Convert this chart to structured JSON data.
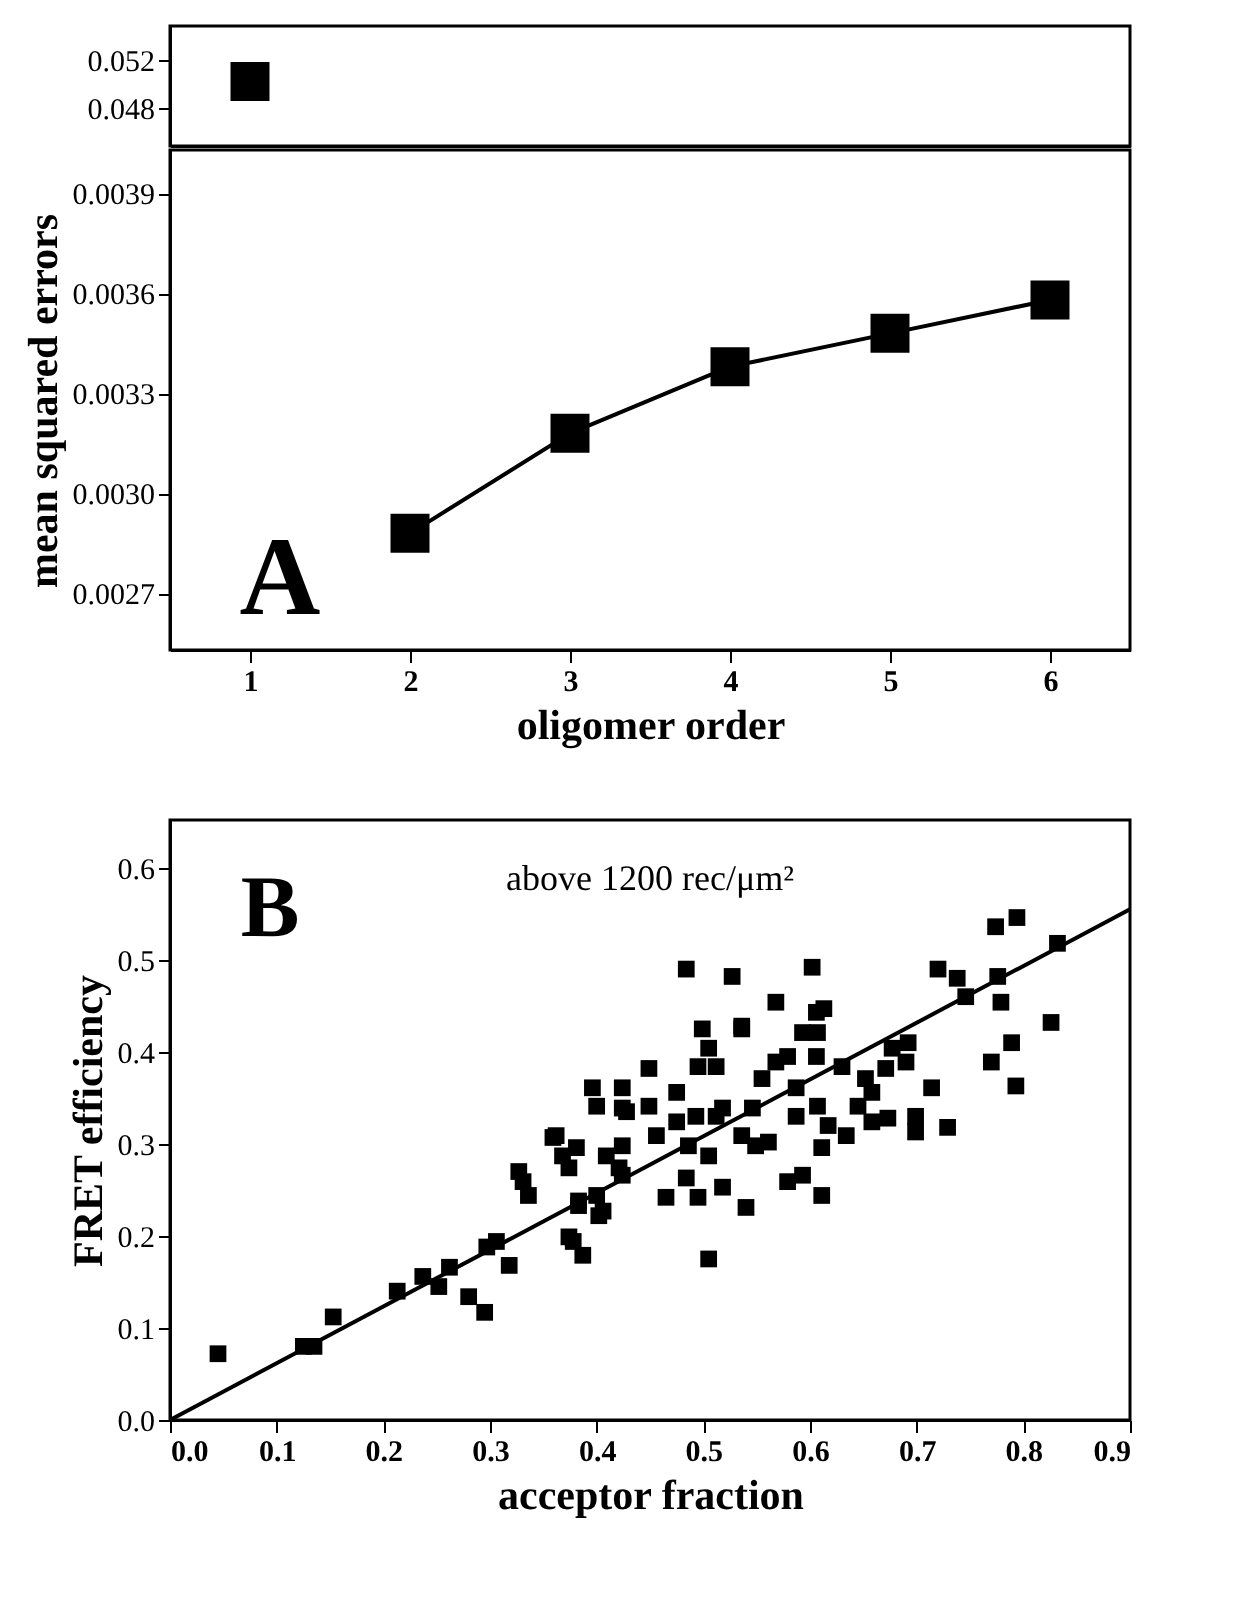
{
  "chart_data": [
    {
      "type": "line",
      "marker": "square",
      "xlim": [
        0.5,
        6.5
      ],
      "ylim": [
        0.04475,
        0.0549
      ],
      "yticks": [
        0.048,
        0.052
      ],
      "tick_labels": "y",
      "grid": false,
      "series": [
        {
          "color": "#000000",
          "x": [
            1
          ],
          "values": [
            0.0502
          ]
        }
      ]
    },
    {
      "type": "line",
      "marker": "square",
      "xlabel": "oligomer order",
      "ylabel": "mean squared errors",
      "xlim": [
        0.5,
        6.5
      ],
      "ylim": [
        0.00253,
        0.00403
      ],
      "xticks": [
        1,
        2,
        3,
        4,
        5,
        6
      ],
      "yticks": [
        0.0027,
        {
          "value": 0.003,
          "label": "0.0030"
        },
        0.0033,
        0.0036,
        0.0039
      ],
      "grid": false,
      "annotations": [
        "A"
      ],
      "series": [
        {
          "color": "#000000",
          "x": [
            2,
            3,
            4,
            5,
            6
          ],
          "values": [
            0.00288,
            0.00318,
            0.00338,
            0.00348,
            0.00358
          ]
        }
      ]
    },
    {
      "type": "scatter",
      "marker": "square",
      "xlabel": "acceptor fraction",
      "ylabel": "FRET efficiency",
      "xlim": [
        0,
        0.9
      ],
      "ylim": [
        0,
        0.652
      ],
      "xticks": [
        {
          "value": 0,
          "label": "0.0"
        },
        0.1,
        0.2,
        0.3,
        0.4,
        0.5,
        0.6,
        0.7,
        0.8,
        0.9
      ],
      "yticks": [
        {
          "value": 0,
          "label": "0.0"
        },
        0.1,
        0.2,
        0.3,
        0.4,
        0.5,
        0.6
      ],
      "grid": false,
      "annotations": [
        "B",
        "above 1200 rec/μm²"
      ],
      "series": [
        {
          "type": "scatter",
          "color": "#000000",
          "x": [
            0.045,
            0.125,
            0.135,
            0.153,
            0.213,
            0.237,
            0.252,
            0.262,
            0.28,
            0.295,
            0.297,
            0.306,
            0.318,
            0.327,
            0.336,
            0.362,
            0.374,
            0.378,
            0.387,
            0.383,
            0.4,
            0.406,
            0.396,
            0.4,
            0.424,
            0.424,
            0.409,
            0.424,
            0.421,
            0.381,
            0.331,
            0.359,
            0.368,
            0.383,
            0.402,
            0.374,
            0.428,
            0.424,
            0.449,
            0.449,
            0.465,
            0.456,
            0.475,
            0.475,
            0.495,
            0.499,
            0.495,
            0.505,
            0.512,
            0.493,
            0.512,
            0.518,
            0.486,
            0.484,
            0.505,
            0.518,
            0.505,
            0.54,
            0.536,
            0.536,
            0.549,
            0.561,
            0.546,
            0.555,
            0.568,
            0.579,
            0.579,
            0.593,
            0.587,
            0.587,
            0.606,
            0.593,
            0.607,
            0.606,
            0.611,
            0.607,
            0.617,
            0.611,
            0.634,
            0.63,
            0.645,
            0.652,
            0.658,
            0.658,
            0.673,
            0.671,
            0.677,
            0.692,
            0.69,
            0.699,
            0.699,
            0.714,
            0.729,
            0.77,
            0.779,
            0.789,
            0.793,
            0.826,
            0.484,
            0.527,
            0.602,
            0.568,
            0.536,
            0.613,
            0.72,
            0.738,
            0.746,
            0.776,
            0.774,
            0.794,
            0.832
          ],
          "values": [
            0.072,
            0.08,
            0.08,
            0.112,
            0.14,
            0.156,
            0.145,
            0.166,
            0.134,
            0.117,
            0.188,
            0.194,
            0.168,
            0.27,
            0.244,
            0.309,
            0.274,
            0.194,
            0.179,
            0.233,
            0.244,
            0.227,
            0.361,
            0.341,
            0.361,
            0.339,
            0.287,
            0.298,
            0.274,
            0.296,
            0.259,
            0.307,
            0.287,
            0.238,
            0.222,
            0.199,
            0.335,
            0.266,
            0.382,
            0.341,
            0.242,
            0.309,
            0.356,
            0.324,
            0.242,
            0.425,
            0.384,
            0.404,
            0.384,
            0.33,
            0.33,
            0.339,
            0.298,
            0.263,
            0.287,
            0.253,
            0.175,
            0.231,
            0.425,
            0.309,
            0.298,
            0.302,
            0.339,
            0.371,
            0.389,
            0.395,
            0.259,
            0.266,
            0.33,
            0.361,
            0.443,
            0.421,
            0.421,
            0.395,
            0.244,
            0.341,
            0.32,
            0.296,
            0.309,
            0.384,
            0.341,
            0.371,
            0.356,
            0.324,
            0.328,
            0.382,
            0.404,
            0.41,
            0.389,
            0.33,
            0.313,
            0.361,
            0.318,
            0.389,
            0.454,
            0.41,
            0.363,
            0.432,
            0.49,
            0.482,
            0.492,
            0.454,
            0.428,
            0.447,
            0.49,
            0.48,
            0.46,
            0.482,
            0.536,
            0.546,
            0.518
          ]
        },
        {
          "type": "line",
          "marker": "none",
          "color": "#000000",
          "x": [
            0,
            0.9
          ],
          "values": [
            0,
            0.555
          ]
        }
      ]
    }
  ]
}
